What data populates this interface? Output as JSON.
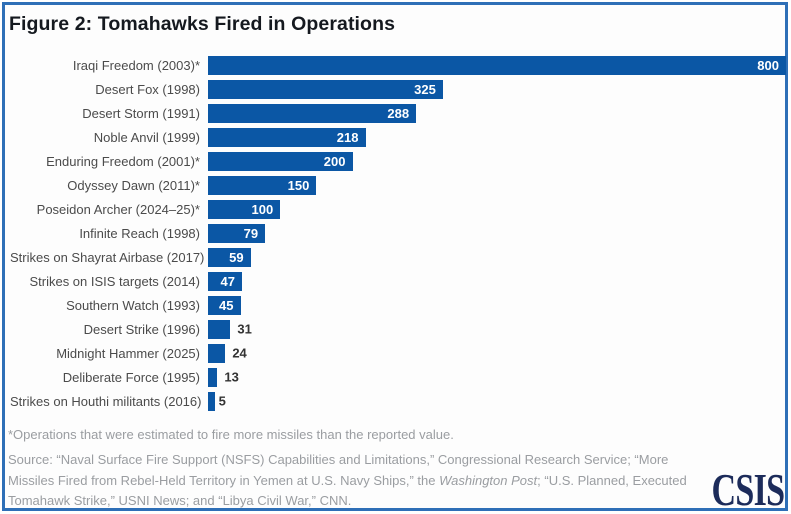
{
  "title": "Figure 2: Tomahawks Fired in Operations",
  "chart_data": {
    "type": "bar",
    "orientation": "horizontal",
    "title": "Figure 2: Tomahawks Fired in Operations",
    "xlabel": "",
    "ylabel": "",
    "xlim": [
      0,
      800
    ],
    "grid": false,
    "legend": "none",
    "bar_color": "#0b57a5",
    "categories": [
      "Iraqi Freedom (2003)*",
      "Desert Fox (1998)",
      "Desert Storm (1991)",
      "Noble Anvil (1999)",
      "Enduring Freedom (2001)*",
      "Odyssey Dawn (2011)*",
      "Poseidon Archer (2024–25)*",
      "Infinite Reach (1998)",
      "Strikes on Shayrat Airbase (2017)",
      "Strikes on ISIS targets (2014)",
      "Southern Watch (1993)",
      "Desert Strike (1996)",
      "Midnight Hammer (2025)",
      "Deliberate Force (1995)",
      "Strikes on Houthi militants (2016)"
    ],
    "values": [
      800,
      325,
      288,
      218,
      200,
      150,
      100,
      79,
      59,
      47,
      45,
      31,
      24,
      13,
      5
    ]
  },
  "footnote": "*Operations that were estimated to fire more missiles than the reported value.",
  "source_segments": [
    {
      "text": "Source: “Naval Surface Fire Support (NSFS) Capabilities and Limitations,” Congressional Research Service; “More Missiles Fired from Rebel-Held Territory in Yemen at U.S. Navy Ships,” the ",
      "italic": false
    },
    {
      "text": "Washington Post",
      "italic": true
    },
    {
      "text": "; “U.S. Planned, Executed Tomahawk Strike,” USNI News; and “Libya Civil War,” CNN.",
      "italic": false
    }
  ],
  "logo_text": "CSIS",
  "colors": {
    "bar": "#0b57a5",
    "frame_border": "#2e6fb7",
    "title_text": "#15191f",
    "category_label": "#4b4b4b",
    "value_inside": "#ffffff",
    "value_outside": "#333333",
    "footnote_text": "#9a9da1",
    "logo": "#1c2b5a"
  }
}
